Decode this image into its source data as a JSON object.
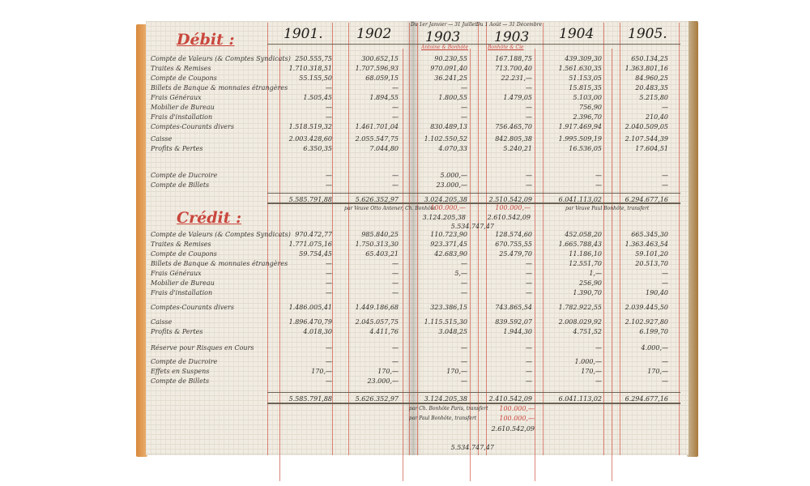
{
  "years": [
    "1901.",
    "1902",
    "1903",
    "1903",
    "1904",
    "1905."
  ],
  "period_notes": [
    "Du 1er Janvier — 31 Juillet",
    "Du 1 Août — 31 Décembre"
  ],
  "firm_headers": [
    "Antoine & Bonhôte",
    "Bonhôte & Cie"
  ],
  "debit": {
    "title": "Débit :",
    "rows": [
      {
        "label": "Compte de Valeurs (& Comptes Syndicats)",
        "values": [
          "250.555,75",
          "300.652,15",
          "90.230,55",
          "167.188,75",
          "439.309,30",
          "650.134,25"
        ]
      },
      {
        "label": "Traites & Remises",
        "values": [
          "1.710.318,51",
          "1.707.596,93",
          "970.091,40",
          "713.700,40",
          "1.561.630,35",
          "1.363.801,16"
        ]
      },
      {
        "label": "Compte de Coupons",
        "values": [
          "55.155,50",
          "68.059,15",
          "36.241,25",
          "22.231,—",
          "51.153,05",
          "84.960,25"
        ]
      },
      {
        "label": "Billets de Banque & monnaies étrangères",
        "values": [
          "—",
          "—",
          "—",
          "—",
          "15.815,35",
          "20.483,35"
        ]
      },
      {
        "label": "Frais Généraux",
        "values": [
          "1.505,45",
          "1.894,55",
          "1.800,55",
          "1.479,05",
          "5.103,00",
          "5.215,80"
        ]
      },
      {
        "label": "Mobilier de Bureau",
        "values": [
          "—",
          "—",
          "—",
          "—",
          "756,90",
          "—"
        ]
      },
      {
        "label": "Frais d'installation",
        "values": [
          "—",
          "—",
          "—",
          "—",
          "2.396,70",
          "210,40"
        ]
      },
      {
        "label": "Comptes-Courants divers",
        "values": [
          "1.518.519,32",
          "1.461.701,04",
          "830.489,13",
          "756.465,70",
          "1.917.469,94",
          "2.040.509,05"
        ]
      },
      {
        "label": "Caisse",
        "values": [
          "2.003.428,60",
          "2.055.547,75",
          "1.102.550,52",
          "842.805,38",
          "1.995.509,19",
          "2.107.544,39"
        ]
      },
      {
        "label": "Profits & Pertes",
        "values": [
          "6.350,35",
          "7.044,80",
          "4.070,33",
          "5.240,21",
          "16.536,05",
          "17.604,51"
        ]
      },
      {
        "label": "Compte de Ducroire",
        "values": [
          "—",
          "—",
          "5.000,—",
          "—",
          "—",
          "—"
        ]
      },
      {
        "label": "Compte de Billets",
        "values": [
          "—",
          "—",
          "23.000,—",
          "—",
          "—",
          "—"
        ]
      }
    ],
    "totals": [
      "5.585.791,88",
      "5.626.352,97",
      "3.024.205,38",
      "2.510.542,09",
      "6.041.113,02",
      "6.294.677,16"
    ]
  },
  "credit": {
    "title": "Crédit :",
    "rows": [
      {
        "label": "Compte de Valeurs (& Comptes Syndicats)",
        "values": [
          "970.472,77",
          "985.840,25",
          "110.723,90",
          "128.574,60",
          "452.058,20",
          "665.345,30"
        ]
      },
      {
        "label": "Traites & Remises",
        "values": [
          "1.771.075,16",
          "1.750.313,30",
          "923.371,45",
          "670.755,55",
          "1.665.788,43",
          "1.363.463,54"
        ]
      },
      {
        "label": "Compte de Coupons",
        "values": [
          "59.754,45",
          "65.403,21",
          "42.683,90",
          "25.479,70",
          "11.186,10",
          "59.101,20"
        ]
      },
      {
        "label": "Billets de Banque & monnaies étrangères",
        "values": [
          "—",
          "—",
          "—",
          "—",
          "12.551,70",
          "20.513,70"
        ]
      },
      {
        "label": "Frais Généraux",
        "values": [
          "—",
          "—",
          "5,—",
          "—",
          "1,—",
          "—"
        ]
      },
      {
        "label": "Mobilier de Bureau",
        "values": [
          "—",
          "—",
          "—",
          "—",
          "256,90",
          "—"
        ]
      },
      {
        "label": "Frais d'installation",
        "values": [
          "—",
          "—",
          "—",
          "—",
          "1.390,70",
          "190,40"
        ]
      },
      {
        "label": "Comptes-Courants divers",
        "values": [
          "1.486.005,41",
          "1.449.186,68",
          "323.386,15",
          "743.865,54",
          "1.782.922,55",
          "2.039.445,50"
        ]
      },
      {
        "label": "Caisse",
        "values": [
          "1.896.470,79",
          "2.045.057,75",
          "1.115.515,30",
          "839.592,07",
          "2.008.029,92",
          "2.102.927,80"
        ]
      },
      {
        "label": "Profits & Pertes",
        "values": [
          "4.018,30",
          "4.411,76",
          "3.048,25",
          "1.944,30",
          "4.751,52",
          "6.199,70"
        ]
      },
      {
        "label": "Réserve pour Risques en Cours",
        "values": [
          "—",
          "—",
          "—",
          "—",
          "—",
          "4.000,—"
        ]
      },
      {
        "label": "Compte de Ducroire",
        "values": [
          "—",
          "—",
          "—",
          "—",
          "1.000,—",
          "—"
        ]
      },
      {
        "label": "Effets en Suspens",
        "values": [
          "170,—",
          "170,—",
          "170,—",
          "—",
          "170,—",
          "170,—"
        ]
      },
      {
        "label": "Compte de Billets",
        "values": [
          "—",
          "23.000,—",
          "—",
          "—",
          "—",
          "—"
        ]
      }
    ],
    "totals": [
      "5.585.791,88",
      "5.626.352,97",
      "3.124.205,38",
      "2.410.542,09",
      "6.041.113,02",
      "6.294.677,16"
    ]
  },
  "debit_adjustments": {
    "note_left": "par Veuve Otto Antener, Ch. Bonhôte",
    "note_right": "par Veuve Paul Bonhôte, transfert",
    "add_a": "100.000,—",
    "add_b": "100.000,—",
    "sum_a": "3.124.205,38",
    "sum_b": "2.610.542,09",
    "combined": "5.534.747,47"
  },
  "credit_adjustments": {
    "note_1": "par Ch. Bonhôte Paris, transfert",
    "note_2": "par Paul Bonhôte, transfert",
    "add_1": "100.000,—",
    "add_2": "100.000,—",
    "sum": "2.610.542,09",
    "combined": "5.534.747,47"
  },
  "colors": {
    "ink": "#2d2a26",
    "red_ink": "#c9463d",
    "paper": "#f1ece2",
    "edge": "#d98a3c"
  }
}
